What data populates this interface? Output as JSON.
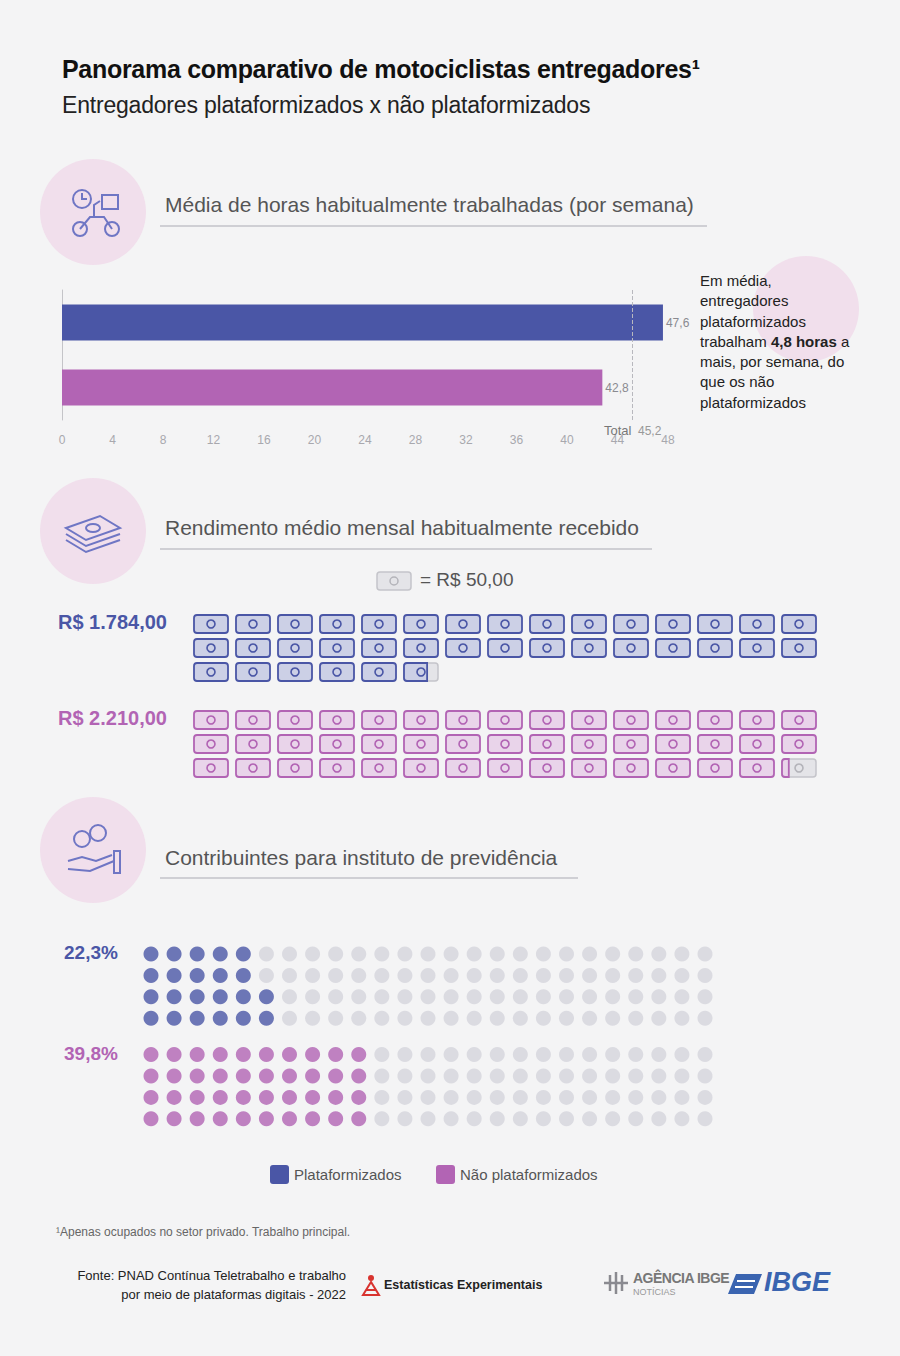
{
  "title": "Panorama comparativo de motociclistas entregadores¹",
  "subtitle": "Entregadores plataformizados x não plataformizados",
  "chart_data": [
    {
      "type": "bar",
      "title": "Média de horas habitualmente trabalhadas (por semana)",
      "orientation": "horizontal",
      "categories": [
        "Plataformizados",
        "Não plataformizados"
      ],
      "values": [
        47.6,
        42.8
      ],
      "value_labels": [
        "47,6",
        "42,8"
      ],
      "colors": [
        "#4a56a6",
        "#b264b4"
      ],
      "xlim": [
        0,
        48
      ],
      "xticks": [
        0,
        4,
        8,
        12,
        16,
        20,
        24,
        28,
        32,
        36,
        40,
        44,
        48
      ],
      "data_labels": true,
      "grid": false,
      "tick_labels": "x",
      "reference_line": {
        "name": "Total",
        "value": 45.2,
        "label": "45,2"
      },
      "annotations": [
        {
          "text": "Em média, entregadores plataformizados trabalham 4,8 horas a mais, por semana, do que os não plataformizados",
          "bold": "4,8 horas"
        }
      ]
    },
    {
      "type": "pictograph",
      "title": "Rendimento médio mensal habitualmente recebido",
      "categories": [
        "Plataformizados",
        "Não plataformizados"
      ],
      "values": [
        1784,
        2210
      ],
      "value_labels": [
        "R$ 1.784,00",
        "R$ 2.210,00"
      ],
      "colors": [
        "#4a56a6",
        "#b264b4"
      ],
      "unit": {
        "value": 50,
        "label": "= R$ 50,00"
      },
      "data_labels": true,
      "tick_labels": false
    },
    {
      "type": "waffle",
      "title": "Contribuintes para instituto de previdência",
      "categories": [
        "Plataformizados",
        "Não plataformizados"
      ],
      "values": [
        22.3,
        39.8
      ],
      "value_labels": [
        "22,3%",
        "39,8%"
      ],
      "colors": [
        "#4a56a6",
        "#b264b4"
      ],
      "data_labels": true,
      "tick_labels": false,
      "legend": "bottom"
    }
  ],
  "footnote": "¹Apenas ocupados no setor privado. Trabalho principal.",
  "source": [
    "Fonte: PNAD Contínua Teletrabalho e trabalho",
    "por meio de plataformas digitais - 2022"
  ],
  "logos": [
    "Estatísticas Experimentais",
    "AGÊNCIA IBGE",
    "NOTÍCIAS",
    "IBGE"
  ]
}
